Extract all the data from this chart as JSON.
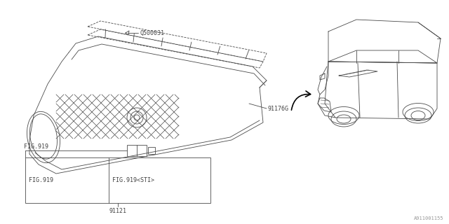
{
  "bg_color": "#ffffff",
  "line_color": "#4a4a4a",
  "label_color": "#444444",
  "fig_width": 6.4,
  "fig_height": 3.2,
  "dpi": 100,
  "part_Q500031": "Q500031",
  "part_91176G": "91176G",
  "part_91121": "91121",
  "label_FIG919": "FIG.919",
  "label_FIG919STI": "FIG.919<STI>",
  "watermark": "A911001155",
  "font_size": 6.0,
  "lw": 0.6
}
